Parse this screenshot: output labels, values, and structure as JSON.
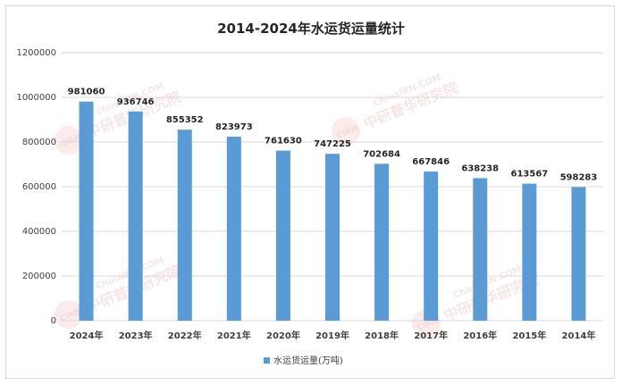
{
  "chart_data": {
    "type": "bar",
    "title": "2014-2024年水运货运量统计",
    "categories": [
      "2024年",
      "2023年",
      "2022年",
      "2021年",
      "2020年",
      "2019年",
      "2018年",
      "2017年",
      "2016年",
      "2015年",
      "2014年"
    ],
    "series": [
      {
        "name": "水运货运量(万吨)",
        "values": [
          981060,
          936746,
          855352,
          823973,
          761630,
          747225,
          702684,
          667846,
          638238,
          613567,
          598283
        ],
        "color": "#5b9bd5"
      }
    ],
    "ylim": [
      0,
      1200000
    ],
    "yticks": [
      0,
      200000,
      400000,
      600000,
      800000,
      1000000,
      1200000
    ],
    "grid": true,
    "legend_position": "bottom",
    "grid_color": "#d9d9d9"
  },
  "watermark": {
    "text": "中研普华研究院",
    "subtext": "ChinaIRN.COM",
    "logo": "CIRN"
  }
}
